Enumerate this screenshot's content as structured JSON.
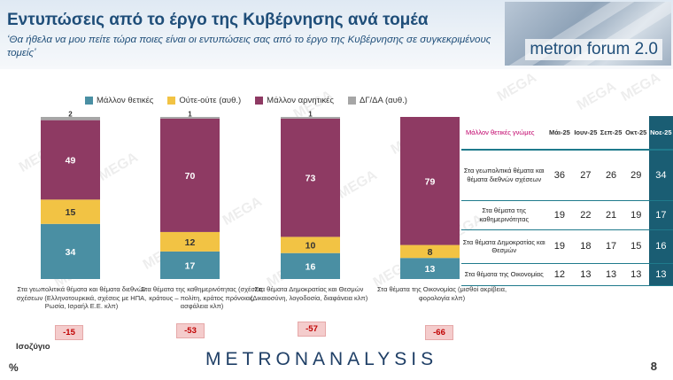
{
  "header": {
    "title": "Εντυπώσεις από το έργο της Κυβέρνησης ανά τομέα",
    "subtitle": "‘Θα ήθελα να μου πείτε τώρα ποιες είναι οι εντυπώσεις σας από το έργο της Κυβέρνησης σε συγκεκριμένους τομείς’",
    "logo_text": "metron forum 2.0"
  },
  "watermark_text": "MEGA",
  "colors": {
    "positive": "#4a8fa3",
    "neutral": "#f2c344",
    "negative": "#8e3a63",
    "dk": "#a6a6a6",
    "accent": "#1f4e79"
  },
  "chart_data": {
    "type": "bar",
    "stacked": true,
    "categories": [
      "Στα γεωπολιτικά θέματα και θέματα διεθνών σχέσεων (Ελληνοτουρκικά, σχέσεις με ΗΠΑ, Ρωσία, Ισραήλ Ε.Ε. κλπ)",
      "Στα θέματα της καθημερινότητας (σχέσεις κράτους – πολίτη, κράτος πρόνοιας, ασφάλεια κλπ)",
      "Στα θέματα Δημοκρατίας και Θεσμών (Δικαιοσύνη, λογοδοσία, διαφάνεια κλπ)",
      "Στα θέματα της Οικονομίας (μισθοί ακρίβεια, φορολογία κλπ)"
    ],
    "series": [
      {
        "name": "Μάλλον θετικές",
        "values": [
          34,
          17,
          16,
          13
        ]
      },
      {
        "name": "Ούτε-ούτε  (αυθ.)",
        "values": [
          15,
          12,
          10,
          8
        ]
      },
      {
        "name": "Μάλλον αρνητικές",
        "values": [
          49,
          70,
          73,
          79
        ]
      },
      {
        "name": "ΔΓ/ΔΑ (αυθ.)",
        "values": [
          2,
          1,
          1,
          0
        ]
      }
    ],
    "data_labels": [
      [
        "34",
        "15",
        "49",
        "2"
      ],
      [
        "17",
        "12",
        "70",
        "1"
      ],
      [
        "16",
        "10",
        "73",
        "1"
      ],
      [
        "13",
        "8",
        "79",
        ""
      ]
    ],
    "balance": [
      "-15",
      "-53",
      "-57",
      "-66"
    ],
    "balance_label": "Ισοζύγιο",
    "unit": "%",
    "ylim": [
      0,
      100
    ],
    "legend_position": "top"
  },
  "trend_table": {
    "header_label": "Μάλλον θετικές γνώμες",
    "periods": [
      "Μάι-25",
      "Ιουν-25",
      "Σεπ-25",
      "Οκτ-25",
      "Νοε-25"
    ],
    "rows": [
      {
        "label": "Στα γεωπολιτικά θέματα και θέματα διεθνών σχέσεων",
        "values": [
          "36",
          "27",
          "26",
          "29",
          "34"
        ]
      },
      {
        "label": "Στα θέματα της καθημερινότητας",
        "values": [
          "19",
          "22",
          "21",
          "19",
          "17"
        ]
      },
      {
        "label": "Στα θέματα Δημοκρατίας και Θεσμών",
        "values": [
          "19",
          "18",
          "17",
          "15",
          "16"
        ]
      },
      {
        "label": "Στα θέματα της Οικονομίας",
        "values": [
          "12",
          "13",
          "13",
          "13",
          "13"
        ]
      }
    ]
  },
  "footer": {
    "brand": "METRONANALYSIS",
    "page_number": "8"
  }
}
